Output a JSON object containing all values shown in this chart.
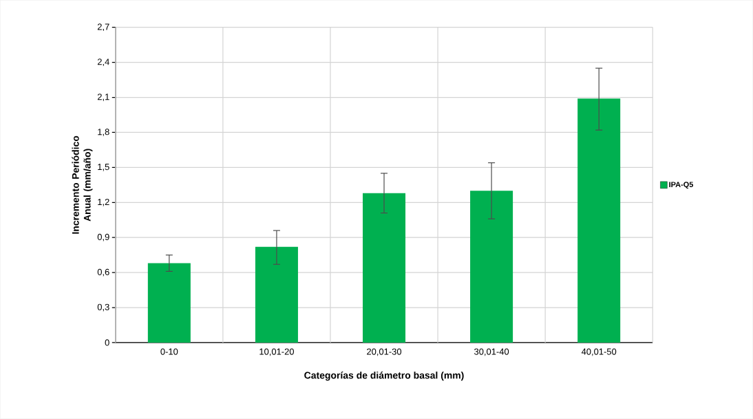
{
  "chart_data": {
    "type": "bar",
    "xlabel": "Categorías de diámetro basal (mm)",
    "ylabel": "Incremento Periódico Anual (mm/año)",
    "categories": [
      "0-10",
      "10,01-20",
      "20,01-30",
      "30,01-40",
      "40,01-50"
    ],
    "series": [
      {
        "name": "IPA-Q5",
        "color": "#00b050",
        "values": [
          0.68,
          0.82,
          1.28,
          1.3,
          2.09
        ],
        "errors": [
          [
            0.61,
            0.75
          ],
          [
            0.67,
            0.96
          ],
          [
            1.11,
            1.45
          ],
          [
            1.06,
            1.54
          ],
          [
            1.82,
            2.35
          ]
        ]
      }
    ],
    "ylim": [
      0,
      2.7
    ],
    "yticks": [
      0,
      {
        "value": 0.3,
        "label": "0,3"
      },
      {
        "value": 0.6,
        "label": "0,6"
      },
      {
        "value": 0.9,
        "label": "0,9"
      },
      {
        "value": 1.2,
        "label": "1,2"
      },
      {
        "value": 1.5,
        "label": "1,5"
      },
      {
        "value": 1.8,
        "label": "1,8"
      },
      {
        "value": 2.1,
        "label": "2,1"
      },
      {
        "value": 2.4,
        "label": "2,4"
      },
      {
        "value": 2.7,
        "label": "2,7"
      }
    ],
    "grid": true,
    "legend": "right"
  }
}
